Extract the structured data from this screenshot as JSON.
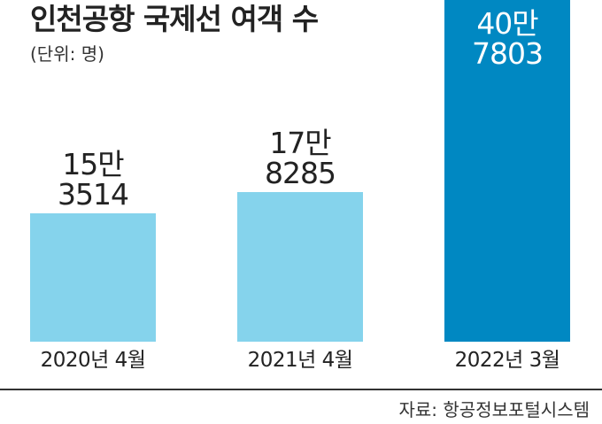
{
  "title": "인천공항 국제선 여객 수",
  "unit": "(단위: 명)",
  "source": "자료: 항공정보포털시스템",
  "colors": {
    "normal_bar": "#85d3ec",
    "highlight_bar": "#0088c2"
  },
  "chart_data": {
    "type": "bar",
    "categories": [
      "2020년 4월",
      "2021년 4월",
      "2022년 3월"
    ],
    "values": [
      153514,
      178285,
      407803
    ],
    "data_labels": [
      [
        "15만",
        "3514"
      ],
      [
        "17만",
        "8285"
      ],
      [
        "40만",
        "7803"
      ]
    ],
    "highlight_index": 2,
    "title": "인천공항 국제선 여객 수",
    "xlabel": "",
    "ylabel": "",
    "grid": false,
    "legend": "none"
  }
}
